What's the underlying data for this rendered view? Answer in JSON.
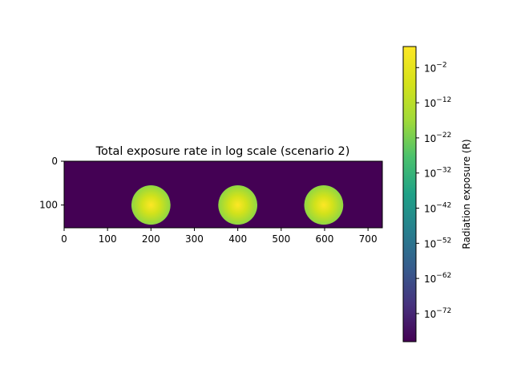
{
  "chart_data": {
    "type": "heatmap",
    "title": "Total exposure rate in log scale (scenario 2)",
    "xlabel": "",
    "ylabel": "",
    "xlim": [
      0,
      733
    ],
    "ylim": [
      152,
      0
    ],
    "x_ticks": [
      0,
      100,
      200,
      300,
      400,
      500,
      600,
      700
    ],
    "y_ticks": [
      0,
      100
    ],
    "background_exposure": 1e-80,
    "sources": [
      {
        "cx": 200,
        "cy": 100,
        "radius": 45
      },
      {
        "cx": 400,
        "cy": 100,
        "radius": 45
      },
      {
        "cx": 598,
        "cy": 100,
        "radius": 45
      }
    ],
    "colorbar": {
      "label": "Radiation exposure (R)",
      "scale": "log",
      "colormap": "viridis",
      "exponent_range": [
        -80,
        4
      ],
      "tick_exponents": [
        -2,
        -12,
        -22,
        -32,
        -42,
        -52,
        -62,
        -72
      ],
      "tick_base": "10"
    },
    "grid": false
  }
}
